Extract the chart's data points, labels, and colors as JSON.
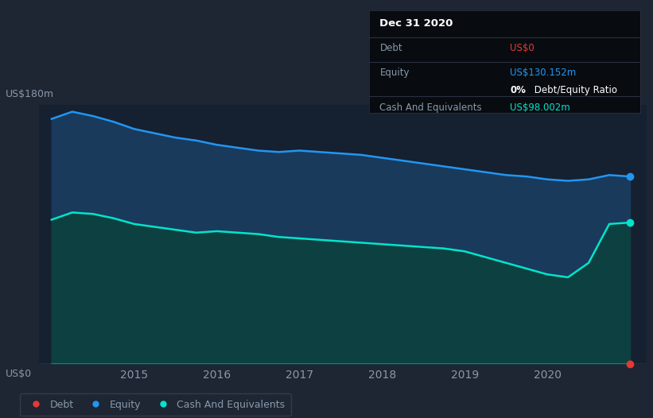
{
  "bg_color": "#1e2533",
  "plot_bg_color": "#152030",
  "ylabel_top": "US$180m",
  "ylabel_bottom": "US$0",
  "x_years": [
    2014.0,
    2014.25,
    2014.5,
    2014.75,
    2015.0,
    2015.25,
    2015.5,
    2015.75,
    2016.0,
    2016.25,
    2016.5,
    2016.75,
    2017.0,
    2017.25,
    2017.5,
    2017.75,
    2018.0,
    2018.25,
    2018.5,
    2018.75,
    2019.0,
    2019.25,
    2019.5,
    2019.75,
    2020.0,
    2020.25,
    2020.5,
    2020.75,
    2021.0
  ],
  "equity": [
    170,
    175,
    172,
    168,
    163,
    160,
    157,
    155,
    152,
    150,
    148,
    147,
    148,
    147,
    146,
    145,
    143,
    141,
    139,
    137,
    135,
    133,
    131,
    130,
    128,
    127,
    128,
    131,
    130
  ],
  "cash": [
    100,
    105,
    104,
    101,
    97,
    95,
    93,
    91,
    92,
    91,
    90,
    88,
    87,
    86,
    85,
    84,
    83,
    82,
    81,
    80,
    78,
    74,
    70,
    66,
    62,
    60,
    70,
    97,
    98
  ],
  "debt": [
    0,
    0,
    0,
    0,
    0,
    0,
    0,
    0,
    0,
    0,
    0,
    0,
    0,
    0,
    0,
    0,
    0,
    0,
    0,
    0,
    0,
    0,
    0,
    0,
    0,
    0,
    0,
    0,
    0
  ],
  "equity_color": "#2196f3",
  "equity_fill": "#1a3a5c",
  "cash_color": "#00e5cc",
  "cash_fill": "#0d4040",
  "debt_color": "#e53935",
  "grid_color": "#253050",
  "tick_color": "#8899aa",
  "annotation_bg": "#080c10",
  "annotation_title": "Dec 31 2020",
  "annotation_debt_label": "Debt",
  "annotation_debt_value": "US$0",
  "annotation_equity_label": "Equity",
  "annotation_equity_value": "US$130.152m",
  "annotation_ratio_bold": "0%",
  "annotation_ratio_normal": " Debt/Equity Ratio",
  "annotation_cash_label": "Cash And Equivalents",
  "annotation_cash_value": "US$98.002m",
  "xticks": [
    2015,
    2016,
    2017,
    2018,
    2019,
    2020
  ],
  "xlim": [
    2013.85,
    2021.2
  ],
  "ylim": [
    0,
    180
  ]
}
